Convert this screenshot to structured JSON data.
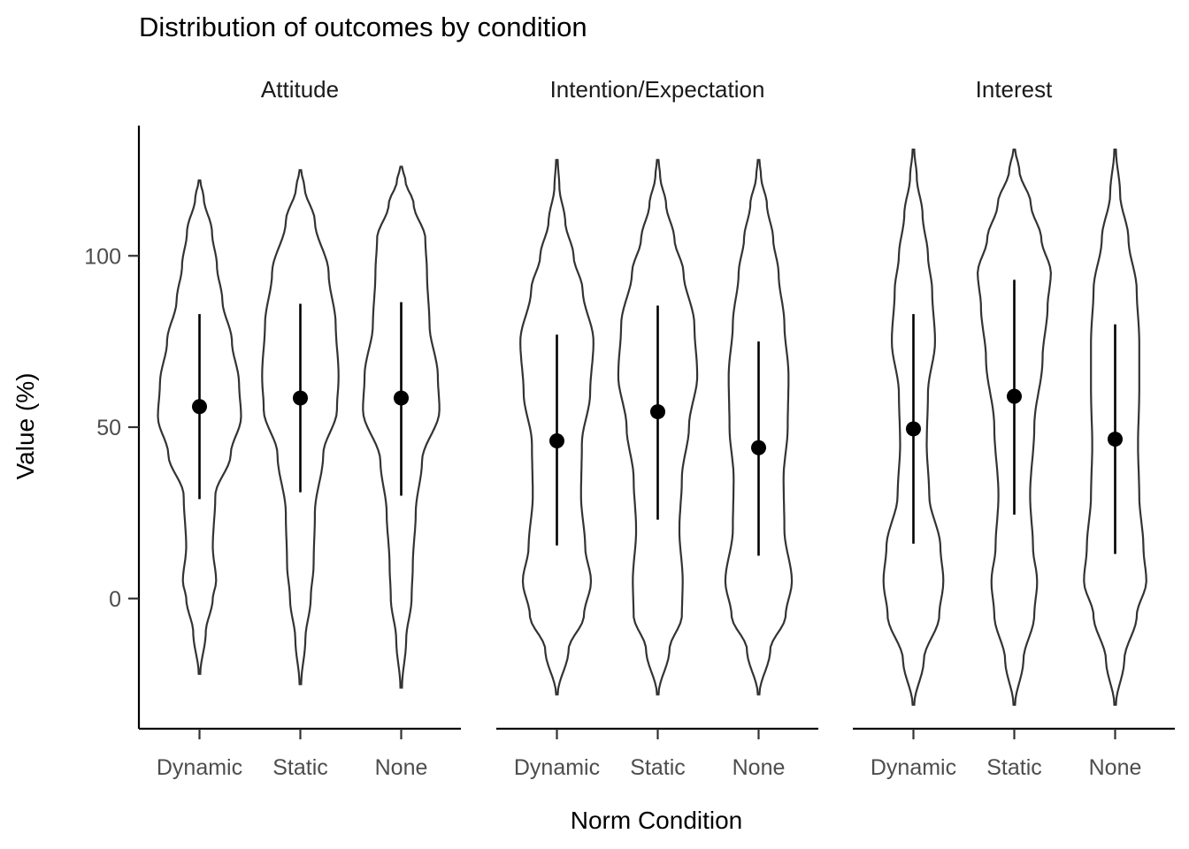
{
  "chart_data": {
    "type": "violin",
    "title": "Distribution of outcomes by condition",
    "xlabel": "Norm Condition",
    "ylabel": "Value (%)",
    "ylim": [
      -38,
      138
    ],
    "yticks": [
      0,
      50,
      100
    ],
    "categories": [
      "Dynamic",
      "Static",
      "None"
    ],
    "grid": false,
    "legend": "none",
    "colors": {
      "outline": "#333333",
      "point": "#000000",
      "fill": "#ffffff"
    },
    "panels": [
      {
        "name": "Attitude",
        "groups": [
          {
            "condition": "Dynamic",
            "mean": 56,
            "lower": 29,
            "upper": 83,
            "min": -22,
            "max": 122,
            "width": [
              [
                -22,
                0.02
              ],
              [
                -10,
                0.15
              ],
              [
                0,
                0.32
              ],
              [
                5,
                0.4
              ],
              [
                15,
                0.32
              ],
              [
                30,
                0.38
              ],
              [
                42,
                0.75
              ],
              [
                53,
                1.0
              ],
              [
                63,
                0.95
              ],
              [
                75,
                0.78
              ],
              [
                87,
                0.55
              ],
              [
                97,
                0.42
              ],
              [
                107,
                0.3
              ],
              [
                117,
                0.1
              ],
              [
                122,
                0.02
              ]
            ]
          },
          {
            "condition": "Static",
            "mean": 58.5,
            "lower": 31,
            "upper": 86,
            "min": -25,
            "max": 125,
            "width": [
              [
                -25,
                0.02
              ],
              [
                -12,
                0.12
              ],
              [
                0,
                0.25
              ],
              [
                10,
                0.32
              ],
              [
                25,
                0.35
              ],
              [
                42,
                0.55
              ],
              [
                55,
                0.88
              ],
              [
                65,
                0.92
              ],
              [
                80,
                0.85
              ],
              [
                95,
                0.68
              ],
              [
                110,
                0.35
              ],
              [
                120,
                0.1
              ],
              [
                125,
                0.02
              ]
            ]
          },
          {
            "condition": "None",
            "mean": 58.5,
            "lower": 30,
            "upper": 86.5,
            "min": -26,
            "max": 126,
            "width": [
              [
                -26,
                0.02
              ],
              [
                -12,
                0.12
              ],
              [
                0,
                0.25
              ],
              [
                10,
                0.28
              ],
              [
                25,
                0.35
              ],
              [
                40,
                0.5
              ],
              [
                55,
                0.92
              ],
              [
                65,
                0.88
              ],
              [
                80,
                0.68
              ],
              [
                95,
                0.62
              ],
              [
                105,
                0.58
              ],
              [
                115,
                0.3
              ],
              [
                122,
                0.1
              ],
              [
                126,
                0.02
              ]
            ]
          }
        ]
      },
      {
        "name": "Intention/Expectation",
        "groups": [
          {
            "condition": "Dynamic",
            "mean": 46,
            "lower": 15.5,
            "upper": 77,
            "min": -28,
            "max": 128,
            "width": [
              [
                -28,
                0.02
              ],
              [
                -15,
                0.28
              ],
              [
                -5,
                0.65
              ],
              [
                5,
                0.82
              ],
              [
                15,
                0.68
              ],
              [
                30,
                0.58
              ],
              [
                45,
                0.6
              ],
              [
                60,
                0.8
              ],
              [
                75,
                0.88
              ],
              [
                90,
                0.62
              ],
              [
                100,
                0.4
              ],
              [
                110,
                0.2
              ],
              [
                120,
                0.06
              ],
              [
                128,
                0.02
              ]
            ]
          },
          {
            "condition": "Static",
            "mean": 54.5,
            "lower": 23,
            "upper": 85.5,
            "min": -28,
            "max": 128,
            "width": [
              [
                -28,
                0.02
              ],
              [
                -15,
                0.28
              ],
              [
                -5,
                0.58
              ],
              [
                5,
                0.6
              ],
              [
                20,
                0.52
              ],
              [
                35,
                0.58
              ],
              [
                50,
                0.75
              ],
              [
                65,
                0.95
              ],
              [
                80,
                0.88
              ],
              [
                95,
                0.62
              ],
              [
                105,
                0.4
              ],
              [
                115,
                0.2
              ],
              [
                123,
                0.06
              ],
              [
                128,
                0.02
              ]
            ]
          },
          {
            "condition": "None",
            "mean": 44,
            "lower": 12.5,
            "upper": 75,
            "min": -28,
            "max": 128,
            "width": [
              [
                -28,
                0.02
              ],
              [
                -15,
                0.28
              ],
              [
                -5,
                0.65
              ],
              [
                5,
                0.8
              ],
              [
                20,
                0.62
              ],
              [
                35,
                0.6
              ],
              [
                50,
                0.7
              ],
              [
                65,
                0.72
              ],
              [
                80,
                0.62
              ],
              [
                95,
                0.48
              ],
              [
                105,
                0.35
              ],
              [
                115,
                0.2
              ],
              [
                123,
                0.06
              ],
              [
                128,
                0.02
              ]
            ]
          }
        ]
      },
      {
        "name": "Interest",
        "groups": [
          {
            "condition": "Dynamic",
            "mean": 49.5,
            "lower": 16,
            "upper": 83,
            "min": -31,
            "max": 131,
            "width": [
              [
                -31,
                0.02
              ],
              [
                -18,
                0.25
              ],
              [
                -5,
                0.62
              ],
              [
                5,
                0.72
              ],
              [
                15,
                0.65
              ],
              [
                30,
                0.38
              ],
              [
                45,
                0.32
              ],
              [
                60,
                0.35
              ],
              [
                75,
                0.52
              ],
              [
                90,
                0.45
              ],
              [
                100,
                0.35
              ],
              [
                112,
                0.22
              ],
              [
                123,
                0.08
              ],
              [
                131,
                0.02
              ]
            ]
          },
          {
            "condition": "Static",
            "mean": 59,
            "lower": 24.5,
            "upper": 93,
            "min": -31,
            "max": 131,
            "width": [
              [
                -31,
                0.02
              ],
              [
                -18,
                0.22
              ],
              [
                -5,
                0.48
              ],
              [
                5,
                0.55
              ],
              [
                15,
                0.45
              ],
              [
                30,
                0.38
              ],
              [
                50,
                0.48
              ],
              [
                70,
                0.68
              ],
              [
                85,
                0.8
              ],
              [
                95,
                0.88
              ],
              [
                105,
                0.65
              ],
              [
                115,
                0.4
              ],
              [
                125,
                0.12
              ],
              [
                131,
                0.02
              ]
            ]
          },
          {
            "condition": "None",
            "mean": 46.5,
            "lower": 13,
            "upper": 80,
            "min": -31,
            "max": 131,
            "width": [
              [
                -31,
                0.02
              ],
              [
                -18,
                0.22
              ],
              [
                -5,
                0.52
              ],
              [
                5,
                0.75
              ],
              [
                15,
                0.68
              ],
              [
                30,
                0.58
              ],
              [
                45,
                0.55
              ],
              [
                60,
                0.58
              ],
              [
                75,
                0.58
              ],
              [
                90,
                0.52
              ],
              [
                105,
                0.32
              ],
              [
                118,
                0.12
              ],
              [
                131,
                0.02
              ]
            ]
          }
        ]
      }
    ]
  }
}
